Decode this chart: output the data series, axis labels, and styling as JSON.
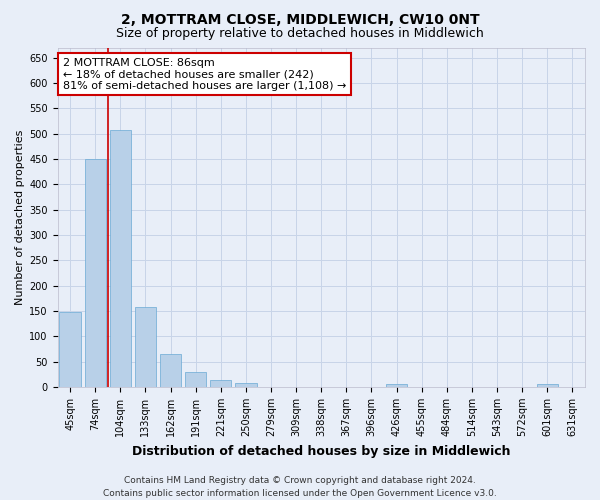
{
  "title1": "2, MOTTRAM CLOSE, MIDDLEWICH, CW10 0NT",
  "title2": "Size of property relative to detached houses in Middlewich",
  "xlabel": "Distribution of detached houses by size in Middlewich",
  "ylabel": "Number of detached properties",
  "categories": [
    "45sqm",
    "74sqm",
    "104sqm",
    "133sqm",
    "162sqm",
    "191sqm",
    "221sqm",
    "250sqm",
    "279sqm",
    "309sqm",
    "338sqm",
    "367sqm",
    "396sqm",
    "426sqm",
    "455sqm",
    "484sqm",
    "514sqm",
    "543sqm",
    "572sqm",
    "601sqm",
    "631sqm"
  ],
  "values": [
    147,
    450,
    507,
    158,
    65,
    30,
    13,
    8,
    0,
    0,
    0,
    0,
    0,
    5,
    0,
    0,
    0,
    0,
    0,
    5,
    0
  ],
  "bar_color": "#b8d0e8",
  "bar_edge_color": "#6aaad4",
  "grid_color": "#c8d4e8",
  "background_color": "#e8eef8",
  "annotation_line1": "2 MOTTRAM CLOSE: 86sqm",
  "annotation_line2": "← 18% of detached houses are smaller (242)",
  "annotation_line3": "81% of semi-detached houses are larger (1,108) →",
  "vline_x": 1.5,
  "annotation_box_facecolor": "#ffffff",
  "annotation_box_edgecolor": "#cc0000",
  "vline_color": "#cc0000",
  "ylim": [
    0,
    670
  ],
  "yticks": [
    0,
    50,
    100,
    150,
    200,
    250,
    300,
    350,
    400,
    450,
    500,
    550,
    600,
    650
  ],
  "footer": "Contains HM Land Registry data © Crown copyright and database right 2024.\nContains public sector information licensed under the Open Government Licence v3.0.",
  "title1_fontsize": 10,
  "title2_fontsize": 9,
  "xlabel_fontsize": 9,
  "ylabel_fontsize": 8,
  "tick_fontsize": 7,
  "annotation_fontsize": 8,
  "footer_fontsize": 6.5
}
